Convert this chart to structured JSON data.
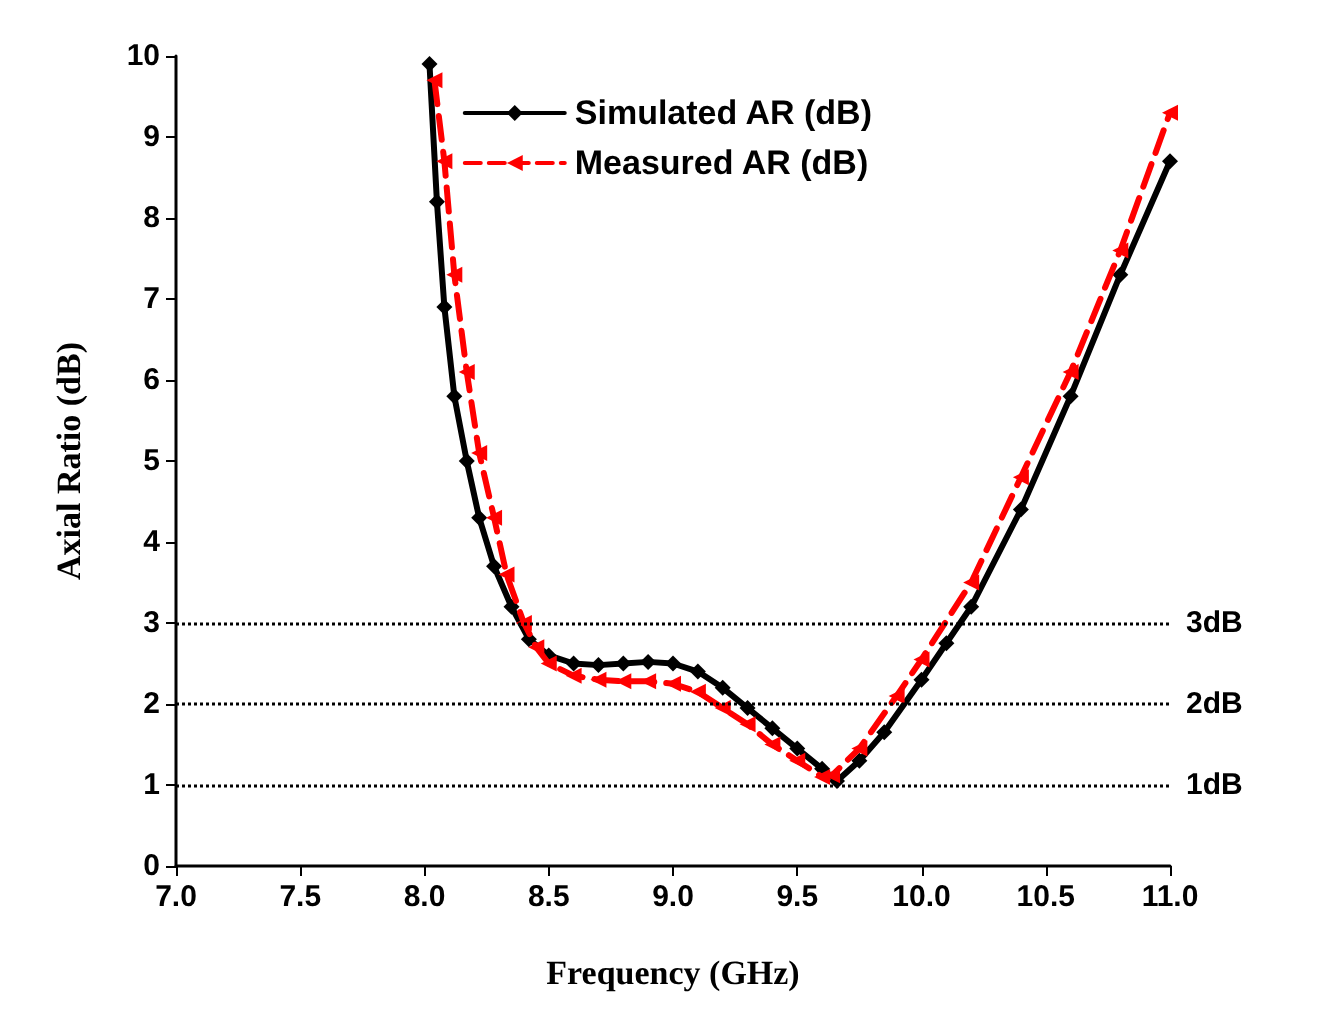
{
  "chart_data": {
    "type": "line",
    "xlabel": "Frequency (GHz)",
    "ylabel": "Axial Ratio (dB)",
    "xlim": [
      7.0,
      11.0
    ],
    "xticks": [
      {
        "value": 7,
        "label": "7.0"
      },
      {
        "value": 7.5,
        "label": "7.5"
      },
      {
        "value": 8,
        "label": "8.0"
      },
      {
        "value": 8.5,
        "label": "8.5"
      },
      {
        "value": 9,
        "label": "9.0"
      },
      {
        "value": 9.5,
        "label": "9.5"
      },
      {
        "value": 10,
        "label": "10.0"
      },
      {
        "value": 10.5,
        "label": "10.5"
      },
      {
        "value": 11,
        "label": "11.0"
      }
    ],
    "ylim": [
      0,
      10
    ],
    "yticks": [
      0,
      1,
      2,
      3,
      4,
      5,
      6,
      7,
      8,
      9,
      10
    ],
    "grid": false,
    "legend": "top",
    "ref_lines": [
      {
        "axis": "y",
        "value": 3,
        "label": "3dB",
        "line_style": "dotted",
        "color": "#000000"
      },
      {
        "axis": "y",
        "value": 2,
        "label": "2dB",
        "line_style": "dotted",
        "color": "#000000"
      },
      {
        "axis": "y",
        "value": 1,
        "label": "1dB",
        "line_style": "dotted",
        "color": "#000000"
      }
    ],
    "series": [
      {
        "name": "Simulated AR (dB)",
        "color": "#000000",
        "marker": "diamond",
        "line_style": "solid",
        "x": [
          8.02,
          8.05,
          8.08,
          8.12,
          8.17,
          8.22,
          8.28,
          8.35,
          8.42,
          8.5,
          8.6,
          8.7,
          8.8,
          8.9,
          9.0,
          9.1,
          9.2,
          9.3,
          9.4,
          9.5,
          9.6,
          9.66,
          9.75,
          9.85,
          10.0,
          10.1,
          10.2,
          10.4,
          10.6,
          10.8,
          11.0
        ],
        "values": [
          9.9,
          8.2,
          6.9,
          5.8,
          5.0,
          4.3,
          3.7,
          3.2,
          2.8,
          2.6,
          2.5,
          2.48,
          2.5,
          2.52,
          2.5,
          2.4,
          2.2,
          1.95,
          1.7,
          1.45,
          1.2,
          1.05,
          1.3,
          1.65,
          2.3,
          2.75,
          3.2,
          4.4,
          5.8,
          7.3,
          8.7
        ]
      },
      {
        "name": "Measured AR (dB)",
        "color": "#ff0000",
        "marker": "triangle",
        "line_style": "dashed",
        "x": [
          8.04,
          8.08,
          8.12,
          8.17,
          8.22,
          8.28,
          8.33,
          8.4,
          8.45,
          8.5,
          8.6,
          8.7,
          8.8,
          8.9,
          9.0,
          9.1,
          9.2,
          9.3,
          9.4,
          9.5,
          9.6,
          9.64,
          9.75,
          9.9,
          10.0,
          10.2,
          10.4,
          10.6,
          10.8,
          11.0
        ],
        "values": [
          9.7,
          8.7,
          7.3,
          6.1,
          5.1,
          4.3,
          3.6,
          3.0,
          2.7,
          2.5,
          2.35,
          2.3,
          2.28,
          2.28,
          2.25,
          2.15,
          1.95,
          1.75,
          1.5,
          1.3,
          1.1,
          1.12,
          1.45,
          2.1,
          2.55,
          3.5,
          4.8,
          6.1,
          7.6,
          9.3
        ]
      }
    ]
  }
}
